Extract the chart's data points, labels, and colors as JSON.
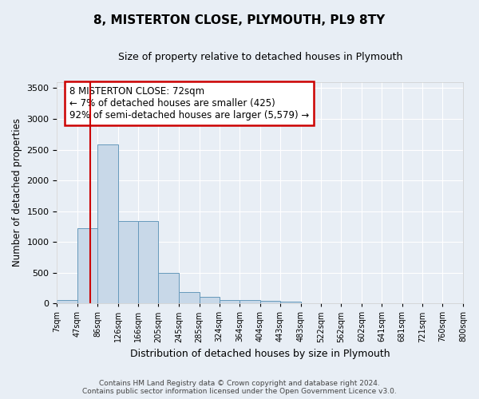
{
  "title": "8, MISTERTON CLOSE, PLYMOUTH, PL9 8TY",
  "subtitle": "Size of property relative to detached houses in Plymouth",
  "xlabel": "Distribution of detached houses by size in Plymouth",
  "ylabel": "Number of detached properties",
  "bin_edges": [
    7,
    47,
    86,
    126,
    166,
    205,
    245,
    285,
    324,
    364,
    404,
    443,
    483,
    522,
    562,
    602,
    641,
    681,
    721,
    760,
    800
  ],
  "bin_labels": [
    "7sqm",
    "47sqm",
    "86sqm",
    "126sqm",
    "166sqm",
    "205sqm",
    "245sqm",
    "285sqm",
    "324sqm",
    "364sqm",
    "404sqm",
    "443sqm",
    "483sqm",
    "522sqm",
    "562sqm",
    "602sqm",
    "641sqm",
    "681sqm",
    "721sqm",
    "760sqm",
    "800sqm"
  ],
  "bar_heights": [
    50,
    1220,
    2580,
    1340,
    1340,
    500,
    190,
    100,
    50,
    50,
    35,
    30,
    5,
    5,
    5,
    5,
    5,
    5,
    5,
    5
  ],
  "bar_color": "#c8d8e8",
  "bar_edge_color": "#6699bb",
  "property_sqm": 72,
  "annotation_line1": "8 MISTERTON CLOSE: 72sqm",
  "annotation_line2": "← 7% of detached houses are smaller (425)",
  "annotation_line3": "92% of semi-detached houses are larger (5,579) →",
  "vline_color": "#cc0000",
  "annotation_box_edge_color": "#cc0000",
  "ylim": [
    0,
    3600
  ],
  "yticks": [
    0,
    500,
    1000,
    1500,
    2000,
    2500,
    3000,
    3500
  ],
  "footer_line1": "Contains HM Land Registry data © Crown copyright and database right 2024.",
  "footer_line2": "Contains public sector information licensed under the Open Government Licence v3.0.",
  "bg_color": "#e8eef5",
  "plot_bg_color": "#e8eef5",
  "grid_color": "#ffffff",
  "title_fontsize": 11,
  "subtitle_fontsize": 9
}
